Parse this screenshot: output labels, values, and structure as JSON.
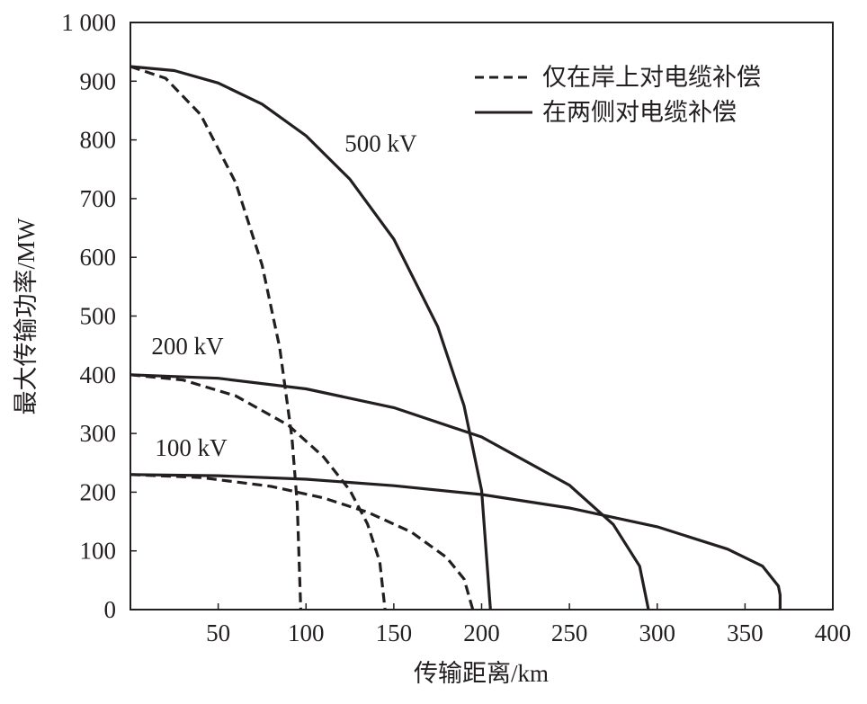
{
  "chart_data": {
    "type": "line",
    "title": "",
    "xlabel": "传输距离/km",
    "ylabel": "最大传输功率/MW",
    "xlim": [
      0,
      400
    ],
    "ylim": [
      0,
      1000
    ],
    "xticks": [
      50,
      100,
      150,
      200,
      250,
      300,
      350,
      400
    ],
    "xtick_labels": [
      "50",
      "100",
      "150",
      "200",
      "250",
      "300",
      "350",
      "400"
    ],
    "yticks": [
      0,
      100,
      200,
      300,
      400,
      500,
      600,
      700,
      800,
      900,
      1000
    ],
    "ytick_labels": [
      "0",
      "100",
      "200",
      "300",
      "400",
      "500",
      "600",
      "700",
      "800",
      "900",
      "1 000"
    ],
    "grid": false,
    "legend": {
      "position": "top-right",
      "entries": [
        {
          "label": "仅在岸上对电缆补偿",
          "style": "dashed"
        },
        {
          "label": "在两侧对电缆补偿",
          "style": "solid"
        }
      ]
    },
    "annotations": [
      {
        "text": "500 kV",
        "x": 122,
        "y": 780
      },
      {
        "text": "200 kV",
        "x": 12,
        "y": 435
      },
      {
        "text": "100 kV",
        "x": 14,
        "y": 262
      }
    ],
    "series": [
      {
        "name": "500 kV 在两侧对电缆补偿",
        "style": "solid",
        "x": [
          0,
          25,
          50,
          75,
          100,
          125,
          150,
          175,
          190,
          200,
          205
        ],
        "y": [
          925,
          918,
          897,
          861,
          807,
          733,
          631,
          482,
          347,
          203,
          0
        ]
      },
      {
        "name": "500 kV 仅在岸上对电缆补偿",
        "style": "dashed",
        "x": [
          0,
          20,
          40,
          60,
          75,
          85,
          92,
          95,
          97
        ],
        "y": [
          925,
          905,
          843,
          727,
          587,
          446,
          293,
          180,
          0
        ]
      },
      {
        "name": "200 kV 在两侧对电缆补偿",
        "style": "solid",
        "x": [
          0,
          50,
          100,
          150,
          200,
          250,
          275,
          290,
          295
        ],
        "y": [
          400,
          394,
          376,
          344,
          294,
          212,
          145,
          74,
          0
        ]
      },
      {
        "name": "200 kV 仅在岸上对电缆补偿",
        "style": "dashed",
        "x": [
          0,
          30,
          60,
          90,
          110,
          125,
          135,
          142,
          145
        ],
        "y": [
          400,
          391,
          364,
          314,
          260,
          203,
          146,
          81,
          0
        ]
      },
      {
        "name": "100 kV 在两侧对电缆补偿",
        "style": "solid",
        "x": [
          0,
          50,
          100,
          150,
          200,
          250,
          300,
          340,
          360,
          369,
          370,
          370
        ],
        "y": [
          230,
          228,
          222,
          211,
          196,
          173,
          141,
          103,
          74,
          40,
          25,
          0
        ]
      },
      {
        "name": "100 kV 仅在岸上对电缆补偿",
        "style": "dashed",
        "x": [
          0,
          40,
          80,
          110,
          135,
          160,
          180,
          190,
          195
        ],
        "y": [
          230,
          225,
          210,
          190,
          166,
          132,
          89,
          52,
          0
        ]
      }
    ]
  }
}
